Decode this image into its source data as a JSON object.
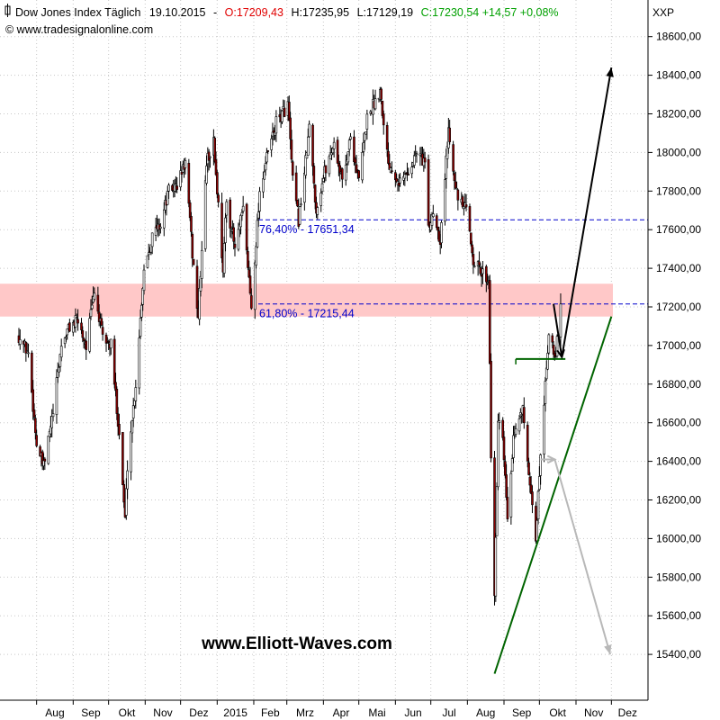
{
  "header": {
    "instrument": "Dow Jones Index Täglich",
    "date": "19.10.2015",
    "open": "O:17209,43",
    "high": "H:17235,95",
    "low": "L:17129,19",
    "close": "C:17230,54 +14,57 +0,08%",
    "copyright": "© www.tradesignalonline.com",
    "axis_tag": "XXP"
  },
  "watermark": "www.Elliott-Waves.com",
  "colors": {
    "open": "#e00000",
    "close": "#00a000",
    "fib": "#0000cc",
    "resistance_zone": "#ffc8c8",
    "trendline": "#006400",
    "projection_up": "#000000",
    "projection_down": "#b8b8b8",
    "bear_candle": "#8b0000",
    "bull_candle": "#ffffff"
  },
  "chart_data": {
    "type": "candlestick",
    "y_ticks": [
      "15400,00",
      "15600,00",
      "15800,00",
      "16000,00",
      "16200,00",
      "16400,00",
      "16600,00",
      "16800,00",
      "17000,00",
      "17200,00",
      "17400,00",
      "17600,00",
      "17800,00",
      "18000,00",
      "18200,00",
      "18400,00",
      "18600,00"
    ],
    "ylim": [
      15300,
      18750
    ],
    "x_ticks": [
      "Aug",
      "Sep",
      "Okt",
      "Nov",
      "Dez",
      "2015",
      "Feb",
      "Mrz",
      "Apr",
      "Mai",
      "Jun",
      "Jul",
      "Aug",
      "Sep",
      "Okt",
      "Nov",
      "Dez"
    ],
    "grid": true,
    "price_path": [
      [
        "2014-07-17",
        17050
      ],
      [
        "2014-07-25",
        16960
      ],
      [
        "2014-08-01",
        16490
      ],
      [
        "2014-08-07",
        16370
      ],
      [
        "2014-08-15",
        16650
      ],
      [
        "2014-08-22",
        17000
      ],
      [
        "2014-08-29",
        17100
      ],
      [
        "2014-09-05",
        17130
      ],
      [
        "2014-09-12",
        17000
      ],
      [
        "2014-09-19",
        17280
      ],
      [
        "2014-09-26",
        17040
      ],
      [
        "2014-10-03",
        17000
      ],
      [
        "2014-10-10",
        16550
      ],
      [
        "2014-10-15",
        16100
      ],
      [
        "2014-10-17",
        16380
      ],
      [
        "2014-10-24",
        16800
      ],
      [
        "2014-10-31",
        17400
      ],
      [
        "2014-11-07",
        17570
      ],
      [
        "2014-11-14",
        17630
      ],
      [
        "2014-11-21",
        17800
      ],
      [
        "2014-11-28",
        17830
      ],
      [
        "2014-12-05",
        17950
      ],
      [
        "2014-12-12",
        17400
      ],
      [
        "2014-12-16",
        17150
      ],
      [
        "2014-12-23",
        17950
      ],
      [
        "2014-12-29",
        18050
      ],
      [
        "2015-01-06",
        17400
      ],
      [
        "2015-01-09",
        17750
      ],
      [
        "2015-01-16",
        17500
      ],
      [
        "2015-01-23",
        17700
      ],
      [
        "2015-01-30",
        17200
      ],
      [
        "2015-02-06",
        17800
      ],
      [
        "2015-02-13",
        18000
      ],
      [
        "2015-02-20",
        18150
      ],
      [
        "2015-03-02",
        18250
      ],
      [
        "2015-03-06",
        17850
      ],
      [
        "2015-03-11",
        17650
      ],
      [
        "2015-03-17",
        17950
      ],
      [
        "2015-03-20",
        18130
      ],
      [
        "2015-03-26",
        17700
      ],
      [
        "2015-04-02",
        17900
      ],
      [
        "2015-04-10",
        18050
      ],
      [
        "2015-04-17",
        17850
      ],
      [
        "2015-04-24",
        18080
      ],
      [
        "2015-05-01",
        17850
      ],
      [
        "2015-05-08",
        18180
      ],
      [
        "2015-05-15",
        18270
      ],
      [
        "2015-05-19",
        18330
      ],
      [
        "2015-05-26",
        17950
      ],
      [
        "2015-06-05",
        17850
      ],
      [
        "2015-06-12",
        17900
      ],
      [
        "2015-06-19",
        18000
      ],
      [
        "2015-06-26",
        17950
      ],
      [
        "2015-06-29",
        17590
      ],
      [
        "2015-07-03",
        17700
      ],
      [
        "2015-07-09",
        17550
      ],
      [
        "2015-07-16",
        18120
      ],
      [
        "2015-07-24",
        17750
      ],
      [
        "2015-07-31",
        17700
      ],
      [
        "2015-08-06",
        17450
      ],
      [
        "2015-08-12",
        17380
      ],
      [
        "2015-08-19",
        17350
      ],
      [
        "2015-08-21",
        16450
      ],
      [
        "2015-08-24",
        15670
      ],
      [
        "2015-08-27",
        16600
      ],
      [
        "2015-08-31",
        16500
      ],
      [
        "2015-09-04",
        16100
      ],
      [
        "2015-09-09",
        16500
      ],
      [
        "2015-09-17",
        16700
      ],
      [
        "2015-09-22",
        16300
      ],
      [
        "2015-09-28",
        16000
      ],
      [
        "2015-10-02",
        16450
      ],
      [
        "2015-10-07",
        16900
      ],
      [
        "2015-10-09",
        17080
      ],
      [
        "2015-10-14",
        16920
      ],
      [
        "2015-10-19",
        17230
      ]
    ],
    "annotations": [
      {
        "label": "76,40% - 17651,34",
        "value": 17651.34
      },
      {
        "label": "61,80% - 17215,44",
        "value": 17215.44
      }
    ],
    "resistance_zone": [
      17150,
      17320
    ],
    "support_line": {
      "from": "2015-09-11",
      "to": "2015-10-23",
      "value": 16930
    },
    "trendline": {
      "from": [
        "2015-08-24",
        15300
      ],
      "to": [
        "2015-12-01",
        17150
      ]
    },
    "projection_up": [
      [
        "2015-10-13",
        17215
      ],
      [
        "2015-10-20",
        16940
      ],
      [
        "2015-12-01",
        18440
      ]
    ],
    "projection_down": [
      [
        "2015-10-02",
        16410
      ],
      [
        "2015-10-14",
        16410
      ],
      [
        "2015-11-30",
        15400
      ]
    ]
  }
}
